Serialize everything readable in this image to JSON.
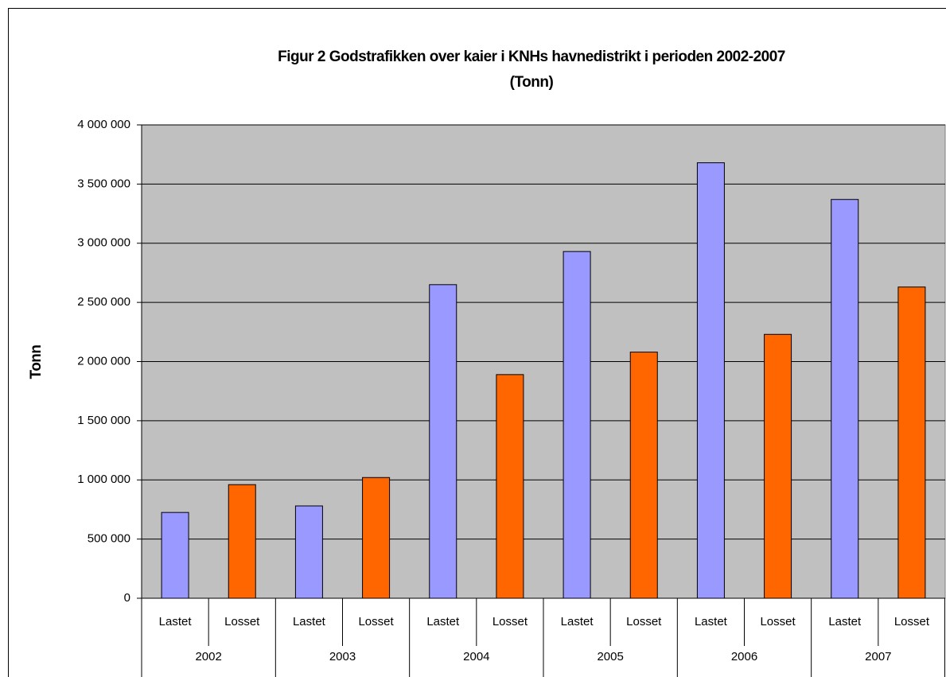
{
  "chart_data": {
    "type": "bar",
    "title": [
      "Figur 2  Godstrafikken over kaier i KNHs havnedistrikt i perioden 2002-2007",
      "(Tonn)"
    ],
    "y_label": "Tonn",
    "categories": [
      "2002",
      "2003",
      "2004",
      "2005",
      "2006",
      "2007"
    ],
    "series": [
      {
        "name": "Lastet",
        "color": "#9999ff",
        "values": [
          725000,
          780000,
          2650000,
          2930000,
          3680000,
          3370000
        ]
      },
      {
        "name": "Losset",
        "color": "#ff6600",
        "values": [
          960000,
          1020000,
          1890000,
          2080000,
          2230000,
          2630000
        ]
      }
    ],
    "ylim": [
      0,
      4000000
    ],
    "yticks": [
      0,
      {
        "value": 500000,
        "label": "500 000"
      },
      {
        "value": 1000000,
        "label": "1 000 000"
      },
      {
        "value": 1500000,
        "label": "1 500 000"
      },
      {
        "value": 2000000,
        "label": "2 000 000"
      },
      {
        "value": 2500000,
        "label": "2 500 000"
      },
      {
        "value": 3000000,
        "label": "3 000 000"
      },
      {
        "value": 3500000,
        "label": "3 500 000"
      },
      {
        "value": 4000000,
        "label": "4 000 000"
      }
    ],
    "grid": true
  }
}
